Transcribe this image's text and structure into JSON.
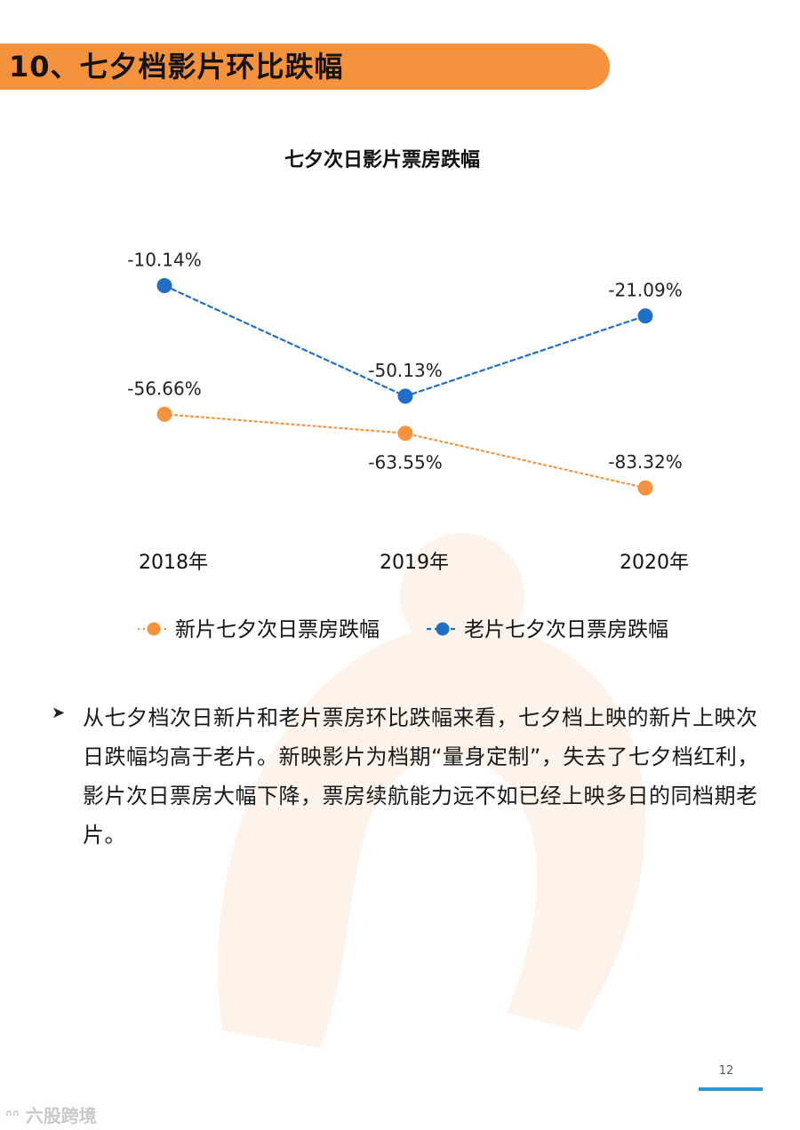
{
  "header": {
    "title": "10、七夕档影片环比跌幅"
  },
  "chart_data": {
    "type": "line",
    "title": "七夕次日影片票房跌幅",
    "categories": [
      "2018年",
      "2019年",
      "2020年"
    ],
    "ylim": [
      -90,
      0
    ],
    "series": [
      {
        "name": "新片七夕次日票房跌幅",
        "values": [
          -56.66,
          -63.55,
          -83.32
        ],
        "labels": [
          "-56.66%",
          "-63.55%",
          "-83.32%"
        ],
        "color": "#f5923e",
        "line_style": "dotted"
      },
      {
        "name": "老片七夕次日票房跌幅",
        "values": [
          -10.14,
          -50.13,
          -21.09
        ],
        "labels": [
          "-10.14%",
          "-50.13%",
          "-21.09%"
        ],
        "color": "#1f6fc5",
        "line_style": "dashed"
      }
    ],
    "legend": "bottom",
    "grid": false
  },
  "bullet": {
    "marker_icon": "arrowhead-bullet-icon",
    "text": "从七夕档次日新片和老片票房环比跌幅来看，七夕档上映的新片上映次日跌幅均高于老片。新映影片为档期“量身定制”，失去了七夕档红利，影片次日票房大幅下降，票房续航能力远不如已经上映多日的同档期老片。"
  },
  "footer": {
    "page_number": "12",
    "source_logo": "六股跨境"
  }
}
